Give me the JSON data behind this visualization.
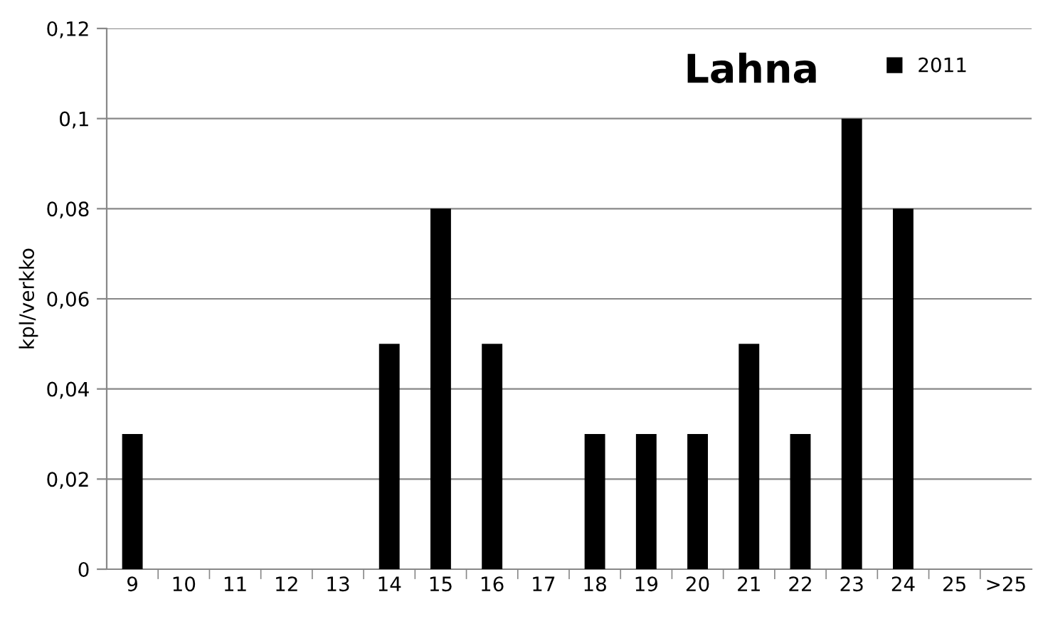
{
  "chart_data": {
    "type": "bar",
    "title": "Lahna",
    "ylabel": "kpl/verkko",
    "categories": [
      "9",
      "10",
      "11",
      "12",
      "13",
      "14",
      "15",
      "16",
      "17",
      "18",
      "19",
      "20",
      "21",
      "22",
      "23",
      "24",
      "25",
      ">25"
    ],
    "series": [
      {
        "name": "2011",
        "color": "#000000",
        "values": [
          0.03,
          0,
          0,
          0,
          0,
          0.05,
          0.08,
          0.05,
          0,
          0.03,
          0.03,
          0.03,
          0.05,
          0.03,
          0.1,
          0.08,
          0,
          0
        ]
      }
    ],
    "ylim": [
      0,
      0.12
    ],
    "yticks": [
      {
        "value": 0,
        "label": "0"
      },
      {
        "value": 0.02,
        "label": "0,02"
      },
      {
        "value": 0.04,
        "label": "0,04"
      },
      {
        "value": 0.06,
        "label": "0,06"
      },
      {
        "value": 0.08,
        "label": "0,08"
      },
      {
        "value": 0.1,
        "label": "0,1"
      },
      {
        "value": 0.12,
        "label": "0,12"
      }
    ],
    "grid": "y",
    "legend": "top right"
  }
}
